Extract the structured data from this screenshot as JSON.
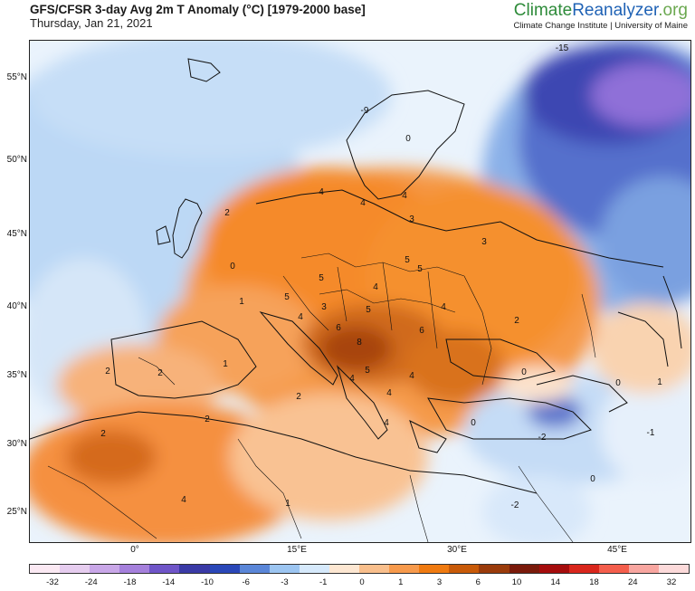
{
  "title": "GFS/CFSR 3-day Avg 2m T Anomaly (°C) [1979-2000 base]",
  "subtitle": "Thursday, Jan 21, 2021",
  "brand": {
    "climate": "Climate",
    "reanalyzer": "Reanalyzer",
    "org": ".org",
    "sub": "Climate Change Institute | University of Maine"
  },
  "lat_labels": [
    "55°N",
    "50°N",
    "45°N",
    "40°N",
    "35°N",
    "30°N",
    "25°N"
  ],
  "lon_labels": [
    "0°",
    "15°E",
    "30°E",
    "45°E"
  ],
  "colorbar": {
    "labels": [
      "-32",
      "-24",
      "-18",
      "-14",
      "-10",
      "-6",
      "-3",
      "-1",
      "0",
      "1",
      "3",
      "6",
      "10",
      "14",
      "18",
      "24",
      "32"
    ],
    "colors": [
      "#fbe9f3",
      "#e6cdef",
      "#c9a7e8",
      "#a580dc",
      "#6f55c8",
      "#3a3aa6",
      "#2a47b8",
      "#5a86d8",
      "#9cc5f1",
      "#d6e9fb",
      "#fde7d2",
      "#f9bf8c",
      "#f79a4c",
      "#ef7a10",
      "#c85a08",
      "#9a3b0a",
      "#7a1a0a",
      "#a50c0c",
      "#d9261c",
      "#f45e4c",
      "#f8a6a0",
      "#fcdada"
    ]
  },
  "contour_labels": [
    "-15",
    "-9",
    "0",
    "4",
    "3",
    "4",
    "4",
    "3",
    "5",
    "5",
    "5",
    "4",
    "4",
    "5",
    "5",
    "2",
    "3",
    "8",
    "6",
    "6",
    "4",
    "4",
    "5",
    "4",
    "4",
    "2",
    "2",
    "4",
    "0",
    "0",
    "-2",
    "-1",
    "0",
    "-2",
    "1",
    "2",
    "2",
    "2",
    "1",
    "2",
    "4",
    "1",
    "0",
    "0",
    "1"
  ],
  "colors": {
    "warm": "#f28a2e",
    "hot": "#c45a12",
    "cold": "#3b4cb8",
    "cool": "#b8d6f4"
  }
}
